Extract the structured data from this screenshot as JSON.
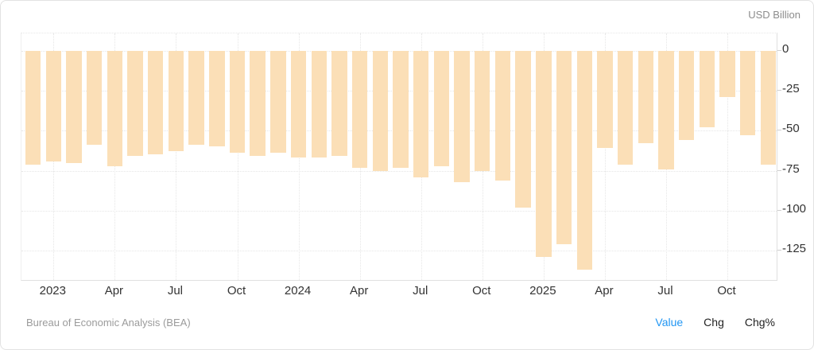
{
  "chart_data": {
    "type": "bar",
    "unit_label": "USD Billion",
    "bar_color": "#fbdfb7",
    "x": [
      "Dec 2022",
      "Jan 2023",
      "Feb 2023",
      "Mar 2023",
      "Apr 2023",
      "May 2023",
      "Jun 2023",
      "Jul 2023",
      "Aug 2023",
      "Sep 2023",
      "Oct 2023",
      "Nov 2023",
      "Dec 2023",
      "Jan 2024",
      "Feb 2024",
      "Mar 2024",
      "Apr 2024",
      "May 2024",
      "Jun 2024",
      "Jul 2024",
      "Aug 2024",
      "Sep 2024",
      "Oct 2024",
      "Nov 2024",
      "Dec 2024",
      "Jan 2025",
      "Feb 2025",
      "Mar 2025",
      "Apr 2025",
      "May 2025",
      "Jun 2025",
      "Jul 2025",
      "Aug 2025",
      "Sep 2025",
      "Oct 2025",
      "Nov 2025",
      "Dec 2025"
    ],
    "values": [
      -71,
      -69,
      -70,
      -59,
      -72,
      -66,
      -65,
      -63,
      -59,
      -60,
      -64,
      -66,
      -64,
      -67,
      -67,
      -66,
      -73,
      -75,
      -73,
      -79,
      -72,
      -82,
      -75,
      -81,
      -98,
      -129,
      -121,
      -137,
      -61,
      -71,
      -58,
      -74,
      -56,
      -48,
      -29,
      -53,
      -71
    ],
    "x_tick_labels": [
      "2023",
      "Apr",
      "Jul",
      "Oct",
      "2024",
      "Apr",
      "Jul",
      "Oct",
      "2025",
      "Apr",
      "Jul",
      "Oct"
    ],
    "y_ticks": [
      0,
      -25,
      -50,
      -75,
      -100,
      -125
    ],
    "ylim": [
      -145,
      11
    ],
    "grid": "dotted",
    "legend": "none"
  },
  "footer": {
    "source": "Bureau of Economic Analysis (BEA)",
    "links": [
      "Value",
      "Chg",
      "Chg%"
    ],
    "active_link": "Value",
    "active_link_color": "#2196f3"
  }
}
